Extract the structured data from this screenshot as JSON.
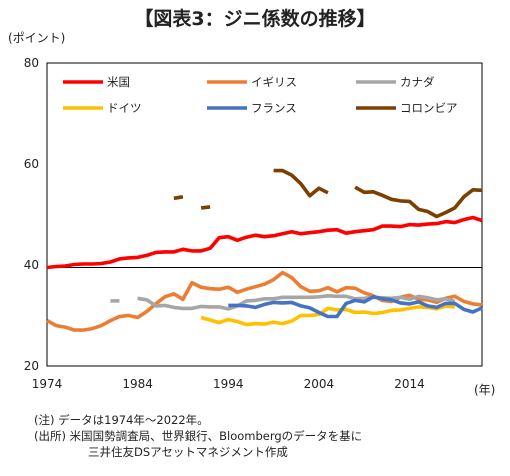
{
  "title": "【図表3：ジニ係数の推移】",
  "unit_label": "(ポイント)",
  "xaxis_unit": "(年)",
  "notes": [
    "(注) データは1974年～2022年。",
    "(出所) 米国国勢調査局、世界銀行、Bloombergのデータを基に",
    "三井住友DSアセットマネジメント作成"
  ],
  "chart_data": {
    "type": "line",
    "xlim": [
      1974,
      2022
    ],
    "ylim": [
      20,
      80
    ],
    "xticks": [
      1974,
      1984,
      1994,
      2004,
      2014
    ],
    "yticks": [
      20,
      40,
      60,
      80
    ],
    "reference_line": 39.5,
    "legend_position": "top",
    "series": [
      {
        "name": "米国",
        "color": "#ff0000",
        "x": [
          1974,
          1975,
          1976,
          1977,
          1978,
          1979,
          1980,
          1981,
          1982,
          1983,
          1984,
          1985,
          1986,
          1987,
          1988,
          1989,
          1990,
          1991,
          1992,
          1993,
          1994,
          1995,
          1996,
          1997,
          1998,
          1999,
          2000,
          2001,
          2002,
          2003,
          2004,
          2005,
          2006,
          2007,
          2008,
          2009,
          2010,
          2011,
          2012,
          2013,
          2014,
          2015,
          2016,
          2017,
          2018,
          2019,
          2020,
          2021,
          2022
        ],
        "y": [
          39.5,
          39.7,
          39.8,
          40.1,
          40.2,
          40.2,
          40.3,
          40.6,
          41.2,
          41.4,
          41.5,
          41.9,
          42.5,
          42.6,
          42.6,
          43.1,
          42.8,
          42.8,
          43.3,
          45.4,
          45.6,
          44.9,
          45.5,
          45.9,
          45.6,
          45.8,
          46.2,
          46.6,
          46.2,
          46.4,
          46.6,
          46.9,
          47.0,
          46.3,
          46.6,
          46.8,
          47.0,
          47.7,
          47.7,
          47.6,
          48.0,
          47.9,
          48.1,
          48.2,
          48.6,
          48.4,
          49.0,
          49.4,
          48.8
        ]
      },
      {
        "name": "イギリス",
        "color": "#ed7d31",
        "x": [
          1974,
          1975,
          1976,
          1977,
          1978,
          1979,
          1980,
          1981,
          1982,
          1983,
          1984,
          1985,
          1986,
          1987,
          1988,
          1989,
          1990,
          1991,
          1992,
          1993,
          1994,
          1995,
          1996,
          1997,
          1998,
          1999,
          2000,
          2001,
          2002,
          2003,
          2004,
          2005,
          2006,
          2007,
          2008,
          2009,
          2010,
          2011,
          2012,
          2013,
          2014,
          2015,
          2016,
          2017,
          2018,
          2019,
          2020,
          2021,
          2022
        ],
        "y": [
          29.0,
          28.0,
          27.7,
          27.1,
          27.1,
          27.4,
          28.0,
          29.0,
          29.8,
          30.0,
          29.6,
          30.8,
          32.3,
          33.7,
          34.3,
          33.2,
          36.5,
          35.6,
          35.3,
          35.2,
          35.6,
          34.6,
          35.2,
          35.7,
          36.2,
          37.1,
          38.5,
          37.5,
          35.7,
          34.8,
          34.9,
          35.5,
          34.7,
          35.5,
          35.4,
          34.5,
          33.9,
          33.0,
          32.8,
          33.6,
          34.0,
          33.2,
          33.1,
          32.6,
          33.4,
          33.8,
          32.8,
          32.3,
          32.1
        ]
      },
      {
        "name": "カナダ",
        "color": "#a6a6a6",
        "x": [
          1981,
          1982,
          null,
          1984,
          1985,
          1986,
          1987,
          1988,
          1989,
          1990,
          1991,
          1992,
          1993,
          1994,
          1995,
          1996,
          1997,
          1998,
          1999,
          2000,
          2001,
          2002,
          2003,
          2004,
          2005,
          2006,
          2007,
          2008,
          2009,
          2010,
          2011,
          2012,
          2013,
          2014,
          2015,
          2016,
          2017,
          2018,
          2019
        ],
        "y": [
          32.9,
          32.9,
          null,
          33.4,
          33.1,
          31.9,
          32.0,
          31.6,
          31.4,
          31.4,
          31.8,
          31.7,
          31.7,
          31.3,
          31.9,
          32.9,
          33.0,
          33.3,
          33.3,
          33.6,
          33.6,
          33.6,
          33.6,
          33.7,
          33.9,
          33.8,
          33.8,
          33.3,
          33.4,
          33.6,
          33.5,
          33.4,
          33.6,
          33.2,
          33.8,
          33.5,
          33.1,
          33.3,
          32.8
        ]
      },
      {
        "name": "ドイツ",
        "color": "#ffc000",
        "x": [
          1991,
          1992,
          1993,
          1994,
          1995,
          1996,
          1997,
          1998,
          1999,
          2000,
          2001,
          2002,
          2003,
          2004,
          2005,
          2006,
          2007,
          2008,
          2009,
          2010,
          2011,
          2012,
          2013,
          2014,
          2015,
          2016,
          2017,
          2018,
          2019
        ],
        "y": [
          29.6,
          29.1,
          28.6,
          29.2,
          28.8,
          28.2,
          28.4,
          28.3,
          28.7,
          28.4,
          28.9,
          30.0,
          30.0,
          30.2,
          31.4,
          31.1,
          31.2,
          30.6,
          30.7,
          30.4,
          30.6,
          31.0,
          31.1,
          31.4,
          31.7,
          31.6,
          31.3,
          31.9,
          31.7
        ]
      },
      {
        "name": "フランス",
        "color": "#4472c4",
        "x": [
          1994,
          1995,
          1996,
          1997,
          1998,
          1999,
          2000,
          2001,
          2002,
          2003,
          2004,
          2005,
          2006,
          2007,
          2008,
          2009,
          2010,
          2011,
          2012,
          2013,
          2014,
          2015,
          2016,
          2017,
          2018,
          2019,
          2020,
          2021,
          2022
        ],
        "y": [
          32.0,
          32.0,
          31.9,
          31.6,
          32.2,
          32.6,
          32.5,
          32.6,
          31.9,
          31.5,
          30.6,
          29.8,
          29.8,
          32.4,
          33.0,
          32.7,
          33.7,
          33.3,
          33.1,
          32.5,
          32.3,
          32.7,
          31.9,
          31.6,
          32.4,
          32.4,
          31.2,
          30.7,
          31.5
        ]
      },
      {
        "name": "コロンビア",
        "color": "#7b3f00",
        "x": [
          1988,
          1989,
          null,
          1991,
          1992,
          null,
          1999,
          2000,
          2001,
          2002,
          2003,
          2004,
          2005,
          2006,
          null,
          2008,
          2009,
          2010,
          2011,
          2012,
          2013,
          2014,
          2015,
          2016,
          2017,
          2018,
          2019,
          2020,
          2021,
          2022
        ],
        "y": [
          53.2,
          53.5,
          null,
          51.3,
          51.5,
          null,
          58.7,
          58.7,
          57.8,
          56.1,
          53.7,
          55.2,
          54.3,
          null,
          null,
          55.4,
          54.4,
          54.5,
          53.8,
          53.0,
          52.7,
          52.6,
          51.0,
          50.6,
          49.6,
          50.4,
          51.3,
          53.5,
          54.9,
          54.8
        ]
      }
    ]
  }
}
